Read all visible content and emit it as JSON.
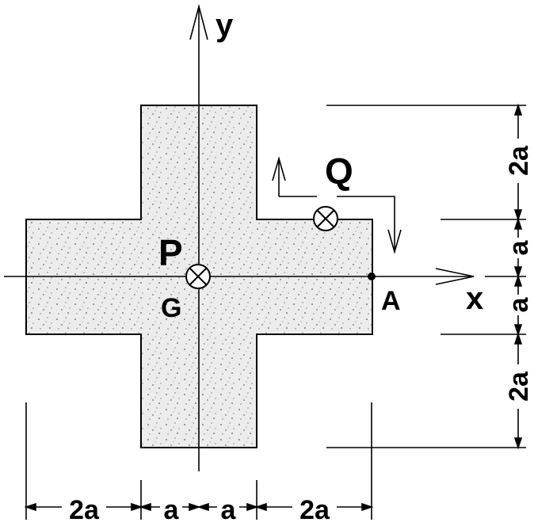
{
  "figure": {
    "axes": {
      "x_label": "x",
      "y_label": "y"
    },
    "points": {
      "centroid": "G",
      "corner": "A",
      "load_p": "P",
      "load_q": "Q"
    },
    "dimensions": {
      "bottom": [
        "2a",
        "a",
        "a",
        "2a"
      ],
      "right": [
        "2a",
        "a",
        "a",
        "2a"
      ]
    },
    "colors": {
      "section_fill": "#ececec",
      "line": "#000000"
    }
  }
}
